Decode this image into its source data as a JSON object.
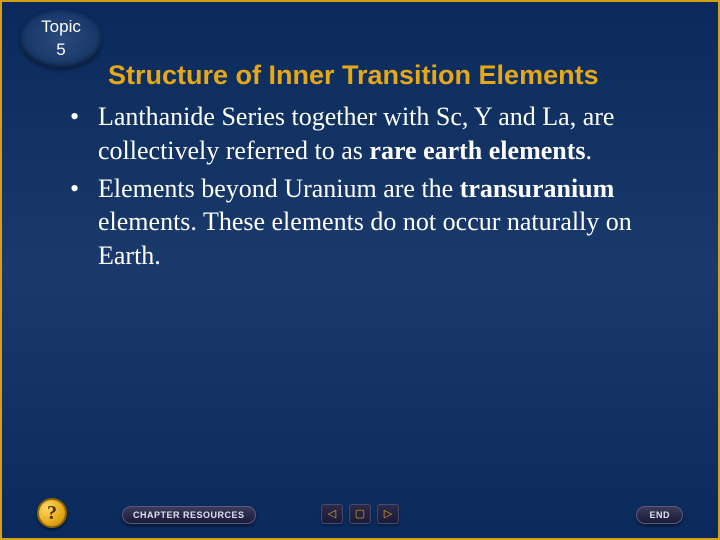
{
  "topic": {
    "label": "Topic",
    "number": "5"
  },
  "title": "Structure of Inner Transition Elements",
  "bullets": [
    {
      "pre": "Lanthanide Series together with Sc, Y and La, are collectively referred to as ",
      "bold": "rare earth elements",
      "post": "."
    },
    {
      "pre": "Elements beyond Uranium are the ",
      "bold": "transuranium",
      "post": " elements.  These elements do not occur naturally on Earth."
    }
  ],
  "nav": {
    "help": "?",
    "chapter": "CHAPTER RESOURCES",
    "prev": "◁",
    "stop": "▢",
    "next": "▷",
    "end": "END"
  },
  "colors": {
    "accent": "#e6a817",
    "bg_top": "#0a2a5c",
    "text": "#ffffff"
  }
}
